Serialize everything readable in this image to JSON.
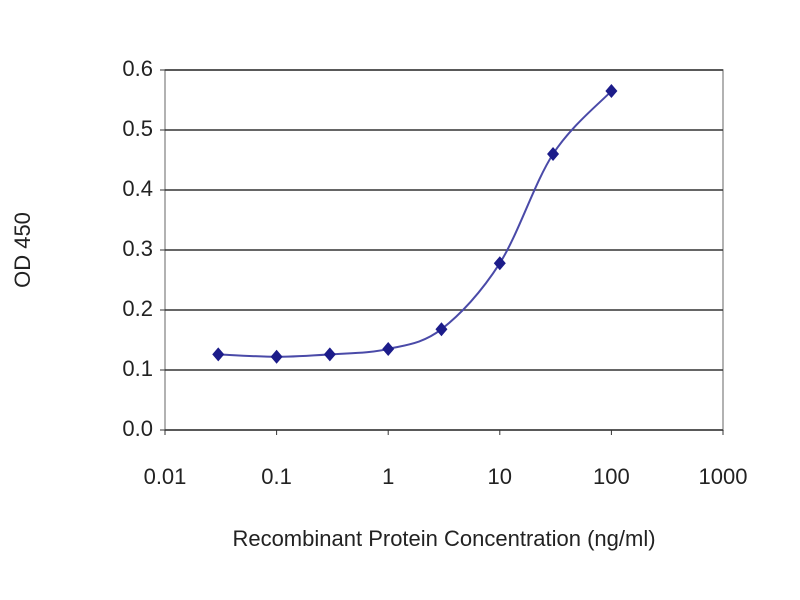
{
  "chart_data": {
    "type": "line",
    "x_label": "Recombinant Protein Concentration (ng/ml)",
    "y_label": "OD 450",
    "x": [
      0.03,
      0.1,
      0.3,
      1,
      3,
      10,
      30,
      100
    ],
    "series": [
      {
        "color": "#1c1c8a",
        "values": [
          0.126,
          0.122,
          0.126,
          0.135,
          0.168,
          0.278,
          0.46,
          0.565
        ]
      }
    ],
    "x_log": true,
    "xlim": [
      0.01,
      1000
    ],
    "xticks": [
      0.01,
      0.1,
      1,
      10,
      100,
      1000
    ],
    "ylim": [
      0,
      0.6
    ],
    "yticks": [
      {
        "value": 0,
        "label": "0.0"
      },
      0.1,
      0.2,
      0.3,
      0.4,
      0.5,
      0.6
    ],
    "grid": true
  }
}
